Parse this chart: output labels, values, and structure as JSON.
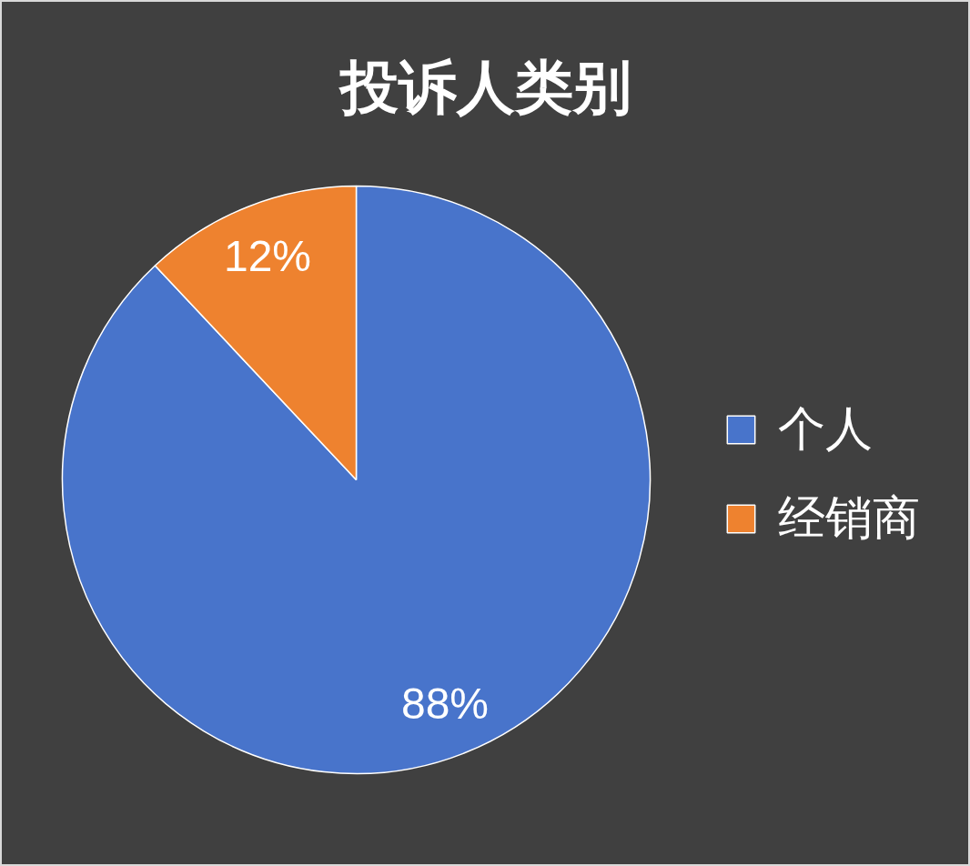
{
  "chart_data": {
    "type": "pie",
    "title": "投诉人类别",
    "categories": [
      "个人",
      "经销商"
    ],
    "values": [
      88,
      12
    ],
    "colors": [
      "#4874cb",
      "#ee822f"
    ],
    "value_labels": [
      "88%",
      "12%"
    ],
    "legend": "right"
  }
}
